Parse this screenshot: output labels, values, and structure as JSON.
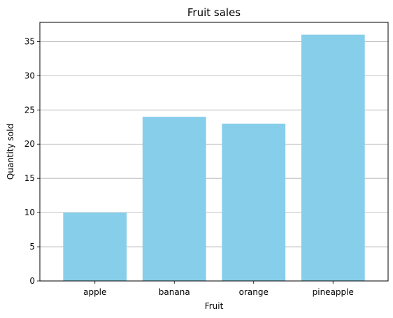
{
  "chart_data": {
    "type": "bar",
    "title": "Fruit sales",
    "xlabel": "Fruit",
    "ylabel": "Quantity sold",
    "categories": [
      "apple",
      "banana",
      "orange",
      "pineapple"
    ],
    "values": [
      10,
      24,
      23,
      36
    ],
    "ylim": [
      0,
      37.8
    ],
    "yticks": [
      0,
      5,
      10,
      15,
      20,
      25,
      30,
      35
    ],
    "grid": "y-axis only",
    "bar_color": "#87ceeb",
    "grid_color": "#b0b0b0"
  }
}
